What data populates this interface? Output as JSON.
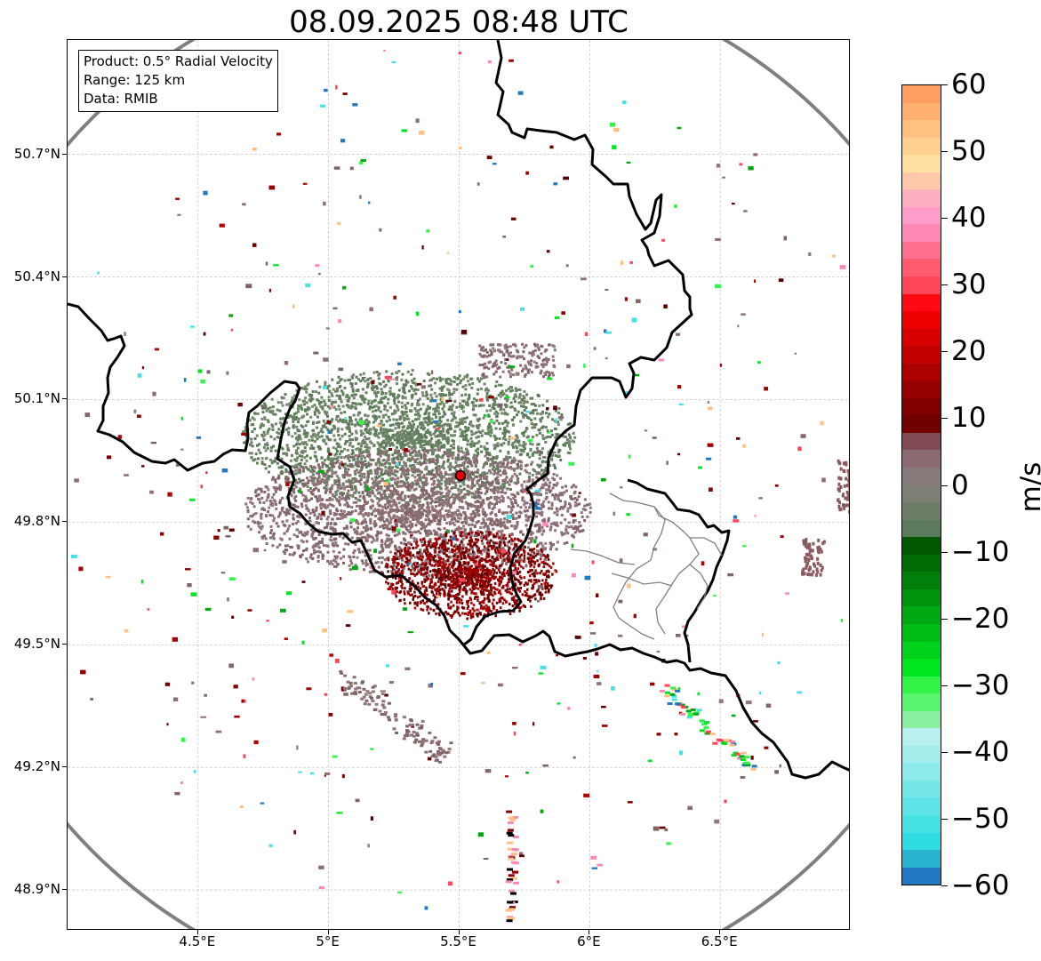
{
  "title": "08.09.2025 08:48 UTC",
  "info_box": {
    "product": "Product: 0.5° Radial Velocity",
    "range": "Range: 125 km",
    "source": "Data: RMIB"
  },
  "map": {
    "lat_ticks": [
      "50.7°N",
      "50.4°N",
      "50.1°N",
      "49.8°N",
      "49.5°N",
      "49.2°N",
      "48.9°N"
    ],
    "lon_ticks": [
      "4.5°E",
      "5°E",
      "5.5°E",
      "6°E",
      "6.5°E"
    ],
    "lon_range": [
      4.0,
      7.0
    ],
    "lat_range": [
      48.8,
      50.98
    ],
    "radar_site": {
      "lon": 5.505,
      "lat": 49.914
    },
    "range_ring_color": "#808080",
    "border_color": "#000000",
    "province_color": "#808080",
    "grid": true
  },
  "colorbar": {
    "label": "m/s",
    "ticks": [
      "60",
      "50",
      "40",
      "30",
      "20",
      "10",
      "0",
      "−10",
      "−20",
      "−30",
      "−40",
      "−50",
      "−60"
    ],
    "range": [
      -60,
      60
    ],
    "colors": [
      "#1f78c1",
      "#29b3d1",
      "#2fdde0",
      "#45e1e3",
      "#5ee4e6",
      "#75e7e8",
      "#8deaeb",
      "#a4eded",
      "#b8f0f0",
      "#8af0a0",
      "#5af570",
      "#32f54a",
      "#00e61e",
      "#00d11a",
      "#00bd16",
      "#00a812",
      "#00940e",
      "#00800a",
      "#006c06",
      "#005800",
      "#5c7a5c",
      "#6c7e68",
      "#7d7e74",
      "#877a7a",
      "#8b6a72",
      "#7f4a52",
      "#700000",
      "#800000",
      "#960000",
      "#ac0000",
      "#c20000",
      "#d80000",
      "#ee0000",
      "#ff0a14",
      "#ff4558",
      "#ff5a6e",
      "#ff7090",
      "#ff88b4",
      "#ff9ccc",
      "#ffb0c0",
      "#ffc8a8",
      "#ffe0a0",
      "#ffd090",
      "#ffc080",
      "#ffb070",
      "#ffa060"
    ]
  }
}
